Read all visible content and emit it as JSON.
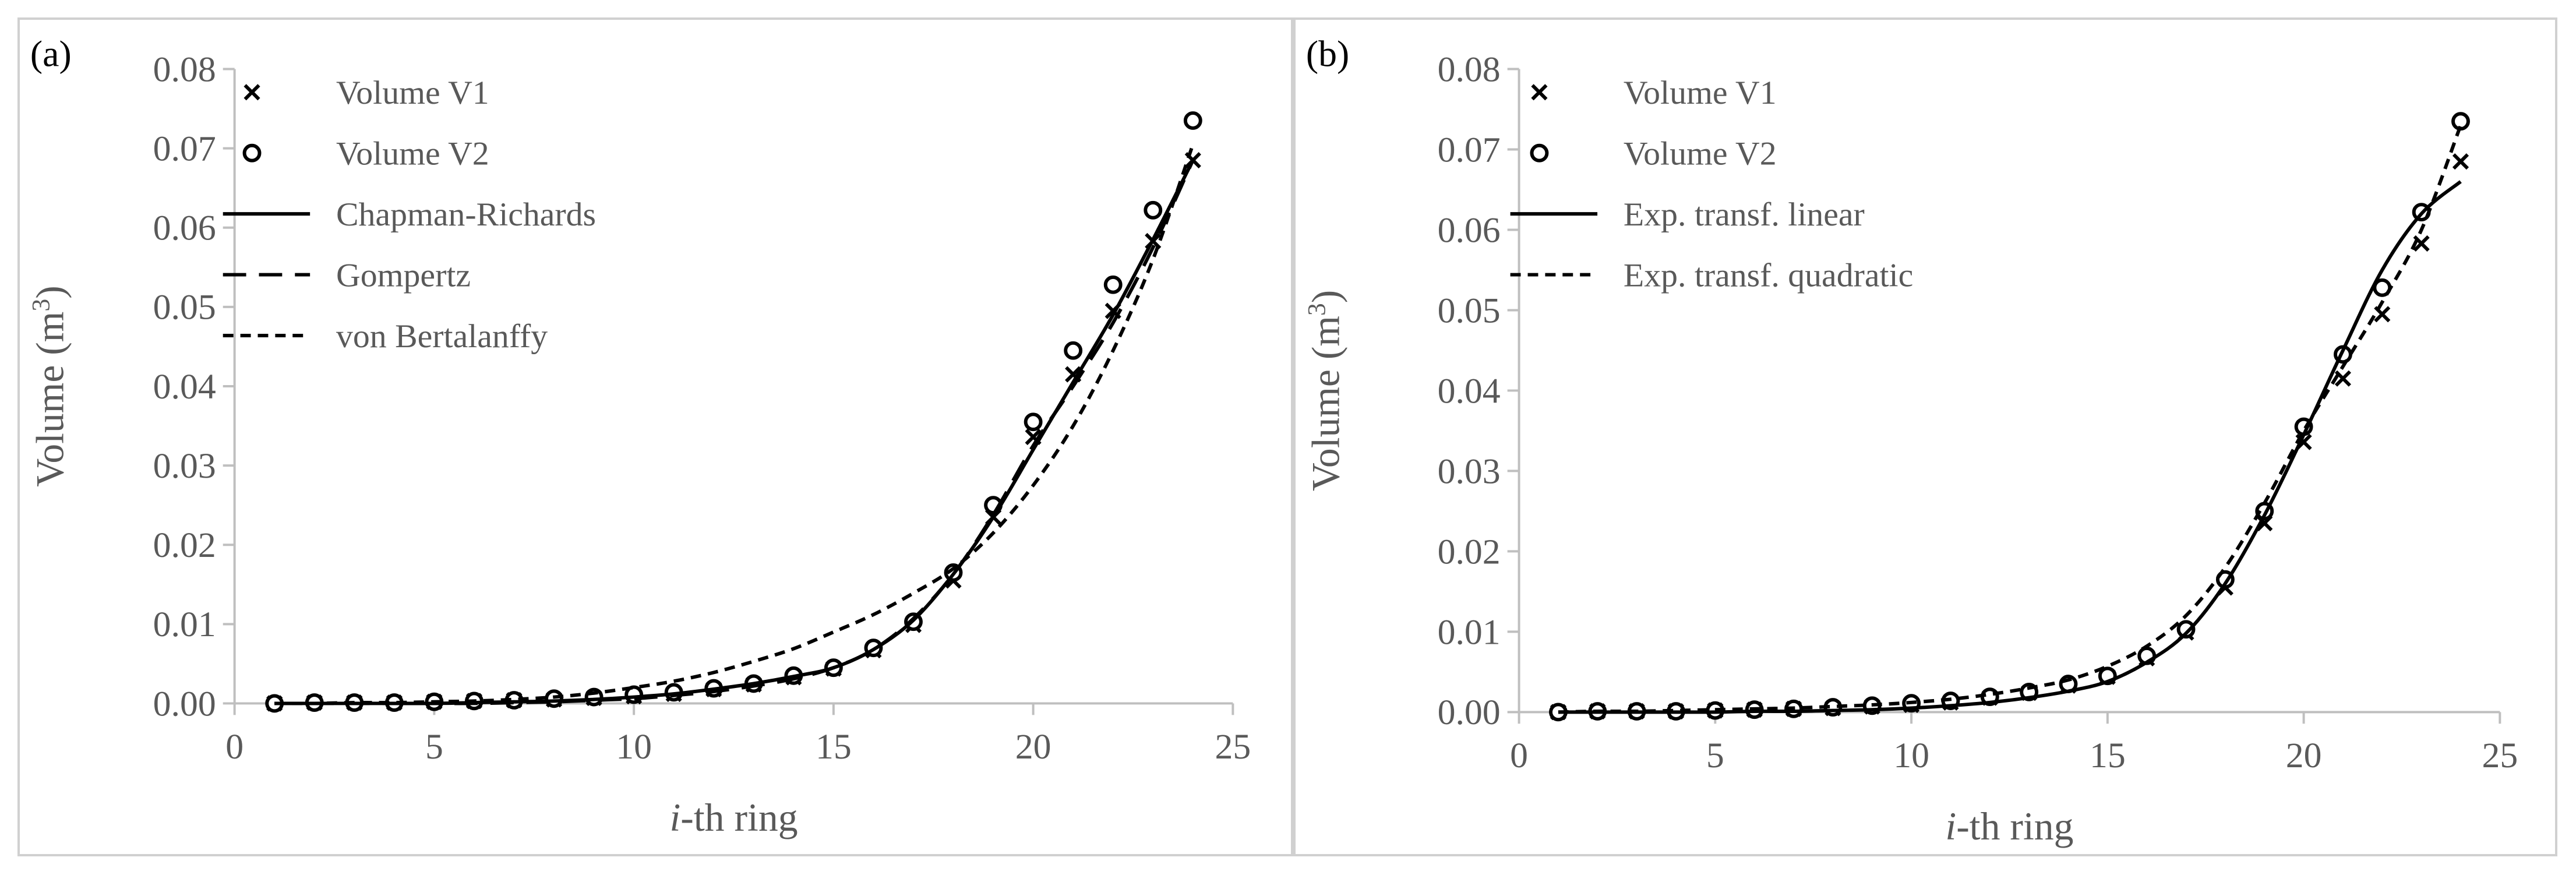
{
  "chart_data": [
    {
      "type": "scatter+line",
      "panel_label": "(a)",
      "xlabel_italic": "i",
      "xlabel_rest": "-th ring",
      "ylabel_main": "Volume (m",
      "ylabel_sup": "3",
      "ylabel_close": ")",
      "xlim": [
        0,
        25
      ],
      "ylim": [
        0,
        0.08
      ],
      "x_ticks": [
        0,
        5,
        10,
        15,
        20,
        25
      ],
      "x_tick_labels": [
        "0",
        "5",
        "10",
        "15",
        "20",
        "25"
      ],
      "y_ticks": [
        0,
        0.01,
        0.02,
        0.03,
        0.04,
        0.05,
        0.06,
        0.07,
        0.08
      ],
      "y_tick_labels": [
        "0.00",
        "0.01",
        "0.02",
        "0.03",
        "0.04",
        "0.05",
        "0.06",
        "0.07",
        "0.08"
      ],
      "legend_position": "top-left",
      "series": [
        {
          "name": "Volume V1",
          "kind": "marker",
          "marker": "x",
          "x": [
            1,
            2,
            3,
            4,
            5,
            6,
            7,
            8,
            9,
            10,
            11,
            12,
            13,
            14,
            15,
            16,
            17,
            18,
            19,
            20,
            21,
            22,
            23,
            24
          ],
          "y": [
            0.0,
            0.0001,
            0.0001,
            0.0001,
            0.0002,
            0.0003,
            0.0004,
            0.0005,
            0.0007,
            0.0009,
            0.0012,
            0.0018,
            0.0024,
            0.0033,
            0.0044,
            0.0067,
            0.0099,
            0.0155,
            0.0235,
            0.0336,
            0.0415,
            0.0495,
            0.0583,
            0.0685
          ]
        },
        {
          "name": "Volume V2",
          "kind": "marker",
          "marker": "o",
          "x": [
            1,
            2,
            3,
            4,
            5,
            6,
            7,
            8,
            9,
            10,
            11,
            12,
            13,
            14,
            15,
            16,
            17,
            18,
            19,
            20,
            21,
            22,
            23,
            24
          ],
          "y": [
            0.0,
            0.0001,
            0.0001,
            0.0001,
            0.0002,
            0.0003,
            0.0004,
            0.0006,
            0.0008,
            0.0011,
            0.0014,
            0.0019,
            0.0025,
            0.0035,
            0.0045,
            0.007,
            0.0103,
            0.0165,
            0.025,
            0.0355,
            0.0445,
            0.0528,
            0.0622,
            0.0735
          ]
        },
        {
          "name": "Chapman-Richards",
          "kind": "line",
          "dash": "solid",
          "x": [
            1,
            2,
            3,
            4,
            5,
            6,
            7,
            8,
            9,
            10,
            11,
            12,
            13,
            14,
            15,
            16,
            17,
            18,
            19,
            20,
            21,
            22,
            23,
            24
          ],
          "y": [
            0.0,
            0.0,
            0.0,
            0.0,
            0.0,
            0.0001,
            0.0002,
            0.0003,
            0.0005,
            0.0008,
            0.0012,
            0.0018,
            0.0025,
            0.0034,
            0.0045,
            0.0068,
            0.0105,
            0.0163,
            0.0235,
            0.032,
            0.0405,
            0.049,
            0.0585,
            0.0685
          ]
        },
        {
          "name": "Gompertz",
          "kind": "line",
          "dash": "long",
          "x": [
            1,
            2,
            3,
            4,
            5,
            6,
            7,
            8,
            9,
            10,
            11,
            12,
            13,
            14,
            15,
            16,
            17,
            18,
            19,
            20,
            21,
            22,
            23,
            24
          ],
          "y": [
            0.0,
            0.0,
            0.0,
            0.0,
            0.0,
            0.0,
            0.0001,
            0.0002,
            0.0004,
            0.0006,
            0.001,
            0.0015,
            0.0022,
            0.0031,
            0.0045,
            0.0068,
            0.0107,
            0.0163,
            0.0238,
            0.0325,
            0.04,
            0.048,
            0.0575,
            0.0685
          ]
        },
        {
          "name": "von Bertalanffy",
          "kind": "line",
          "dash": "short",
          "x": [
            1,
            2,
            3,
            4,
            5,
            6,
            7,
            8,
            9,
            10,
            11,
            12,
            13,
            14,
            15,
            16,
            17,
            18,
            19,
            20,
            21,
            22,
            23,
            24
          ],
          "y": [
            0.0,
            0.0,
            0.0001,
            0.0001,
            0.0002,
            0.0003,
            0.0005,
            0.0008,
            0.0013,
            0.002,
            0.0028,
            0.0039,
            0.0053,
            0.0069,
            0.009,
            0.0112,
            0.0139,
            0.017,
            0.0215,
            0.0275,
            0.035,
            0.0445,
            0.056,
            0.0705
          ]
        }
      ]
    },
    {
      "type": "scatter+line",
      "panel_label": "(b)",
      "xlabel_italic": "i",
      "xlabel_rest": "-th ring",
      "ylabel_main": "Volume (m",
      "ylabel_sup": "3",
      "ylabel_close": ")",
      "xlim": [
        0,
        25
      ],
      "ylim": [
        0,
        0.08
      ],
      "x_ticks": [
        0,
        5,
        10,
        15,
        20,
        25
      ],
      "x_tick_labels": [
        "0",
        "5",
        "10",
        "15",
        "20",
        "25"
      ],
      "y_ticks": [
        0,
        0.01,
        0.02,
        0.03,
        0.04,
        0.05,
        0.06,
        0.07,
        0.08
      ],
      "y_tick_labels": [
        "0.00",
        "0.01",
        "0.02",
        "0.03",
        "0.04",
        "0.05",
        "0.06",
        "0.07",
        "0.08"
      ],
      "legend_position": "top-left",
      "series": [
        {
          "name": "Volume V1",
          "kind": "marker",
          "marker": "x",
          "x": [
            1,
            2,
            3,
            4,
            5,
            6,
            7,
            8,
            9,
            10,
            11,
            12,
            13,
            14,
            15,
            16,
            17,
            18,
            19,
            20,
            21,
            22,
            23,
            24
          ],
          "y": [
            0.0,
            0.0001,
            0.0001,
            0.0001,
            0.0002,
            0.0003,
            0.0004,
            0.0005,
            0.0007,
            0.0009,
            0.0012,
            0.0018,
            0.0024,
            0.0033,
            0.0044,
            0.0067,
            0.0099,
            0.0155,
            0.0235,
            0.0336,
            0.0415,
            0.0495,
            0.0583,
            0.0685
          ]
        },
        {
          "name": "Volume V2",
          "kind": "marker",
          "marker": "o",
          "x": [
            1,
            2,
            3,
            4,
            5,
            6,
            7,
            8,
            9,
            10,
            11,
            12,
            13,
            14,
            15,
            16,
            17,
            18,
            19,
            20,
            21,
            22,
            23,
            24
          ],
          "y": [
            0.0,
            0.0001,
            0.0001,
            0.0001,
            0.0002,
            0.0003,
            0.0004,
            0.0006,
            0.0008,
            0.0011,
            0.0014,
            0.0019,
            0.0025,
            0.0035,
            0.0045,
            0.007,
            0.0103,
            0.0165,
            0.025,
            0.0355,
            0.0445,
            0.0528,
            0.0622,
            0.0735
          ]
        },
        {
          "name": "Exp. transf. linear",
          "kind": "line",
          "dash": "solid",
          "x": [
            1,
            2,
            3,
            4,
            5,
            6,
            7,
            8,
            9,
            10,
            11,
            12,
            13,
            14,
            15,
            16,
            17,
            18,
            19,
            20,
            21,
            22,
            23,
            24
          ],
          "y": [
            0.0,
            0.0,
            0.0,
            0.0,
            0.0,
            0.0001,
            0.0001,
            0.0002,
            0.0003,
            0.0005,
            0.0008,
            0.0012,
            0.0018,
            0.0026,
            0.0038,
            0.0062,
            0.0098,
            0.016,
            0.0245,
            0.0345,
            0.045,
            0.055,
            0.062,
            0.066
          ]
        },
        {
          "name": "Exp. transf. quadratic",
          "kind": "line",
          "dash": "short",
          "x": [
            1,
            2,
            3,
            4,
            5,
            6,
            7,
            8,
            9,
            10,
            11,
            12,
            13,
            14,
            15,
            16,
            17,
            18,
            19,
            20,
            21,
            22,
            23,
            24
          ],
          "y": [
            0.0,
            0.0001,
            0.0001,
            0.0002,
            0.0003,
            0.0004,
            0.0005,
            0.0007,
            0.0009,
            0.0012,
            0.0016,
            0.0022,
            0.003,
            0.004,
            0.0057,
            0.0082,
            0.012,
            0.018,
            0.026,
            0.035,
            0.043,
            0.051,
            0.06,
            0.073
          ]
        }
      ]
    }
  ]
}
